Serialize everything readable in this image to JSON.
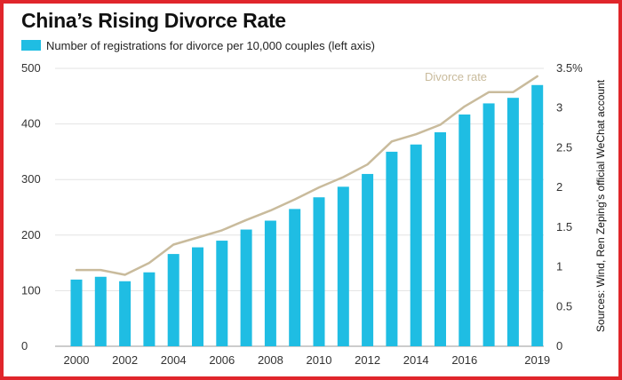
{
  "chart_data": {
    "type": "bar",
    "title": "China’s Rising Divorce Rate",
    "legend_label": "Number of registrations for divorce per 10,000 couples (left axis)",
    "line_label": "Divorce rate",
    "source": "Sources: Wind, Ren Zeping’s official WeChat account",
    "x": [
      2000,
      2001,
      2002,
      2003,
      2004,
      2005,
      2006,
      2007,
      2008,
      2009,
      2010,
      2011,
      2012,
      2013,
      2014,
      2015,
      2016,
      2017,
      2018,
      2019
    ],
    "x_tick_labels": [
      "2000",
      "2002",
      "2004",
      "2006",
      "2008",
      "2010",
      "2012",
      "2014",
      "2016",
      "2019"
    ],
    "series": [
      {
        "name": "Number of registrations for divorce per 10,000 couples (left axis)",
        "axis": "left",
        "type": "bar",
        "values": [
          120,
          125,
          117,
          133,
          166,
          178,
          190,
          210,
          226,
          247,
          268,
          287,
          310,
          350,
          363,
          385,
          417,
          437,
          447,
          470
        ]
      },
      {
        "name": "Divorce rate",
        "axis": "right",
        "type": "line",
        "values": [
          0.96,
          0.96,
          0.9,
          1.05,
          1.28,
          1.37,
          1.46,
          1.59,
          1.71,
          1.85,
          2.0,
          2.13,
          2.29,
          2.58,
          2.67,
          2.79,
          3.02,
          3.2,
          3.2,
          3.4
        ]
      }
    ],
    "ylim_left": [
      0,
      500
    ],
    "yticks_left": [
      "0",
      "100",
      "200",
      "300",
      "400",
      "500"
    ],
    "ylim_right": [
      0,
      3.5
    ],
    "yticks_right": [
      "0",
      "0.5",
      "1",
      "1.5",
      "2",
      "2.5",
      "3",
      "3.5%"
    ],
    "colors": {
      "bars": "#1fbde3",
      "line": "#c9bb9c",
      "frame": "#e0262b"
    },
    "grid": "horizontal"
  }
}
